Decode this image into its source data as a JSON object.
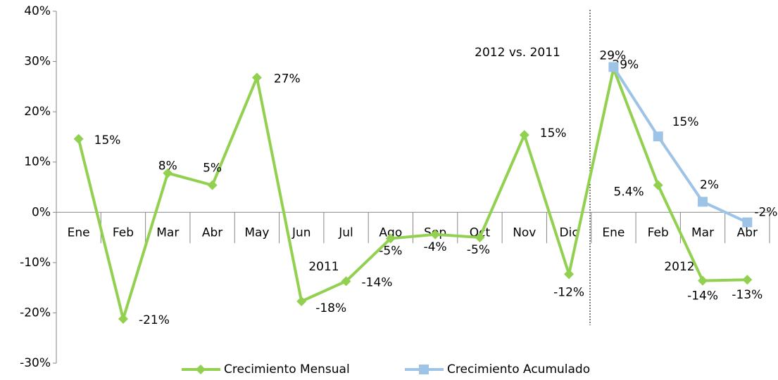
{
  "chart_data": {
    "type": "line",
    "annotations": [
      "2012 vs. 2011",
      "2011",
      "2012"
    ],
    "categories": [
      "Ene",
      "Feb",
      "Mar",
      "Abr",
      "May",
      "Jun",
      "Jul",
      "Ago",
      "Sep",
      "Oct",
      "Nov",
      "Dic",
      "Ene",
      "Feb",
      "Mar",
      "Abr"
    ],
    "series": [
      {
        "name": "Crecimiento Mensual",
        "color": "#92d050",
        "values": [
          14.6,
          -21.2,
          7.8,
          5.4,
          26.8,
          -17.7,
          -13.7,
          -5.2,
          -4.4,
          -5.0,
          15.4,
          -12.3,
          28.6,
          5.4,
          -13.6,
          -13.4
        ],
        "value_labels": [
          "15%",
          "-21%",
          "8%",
          "5%",
          "27%",
          "-18%",
          "-14%",
          "-5%",
          "-4%",
          "-5%",
          "15%",
          "-12%",
          "29%",
          "5.4%",
          "-14%",
          "-13%"
        ]
      },
      {
        "name": "Crecimiento Acumulado",
        "color": "#9dc3e6",
        "values": [
          null,
          null,
          null,
          null,
          null,
          null,
          null,
          null,
          null,
          null,
          null,
          null,
          28.9,
          15.1,
          2.1,
          -2.0
        ],
        "value_labels": [
          null,
          null,
          null,
          null,
          null,
          null,
          null,
          null,
          null,
          null,
          null,
          null,
          "29%",
          "15%",
          "2%",
          "-2%"
        ]
      }
    ],
    "ylim": [
      -30,
      40
    ],
    "yticks": [
      {
        "value": -30,
        "label": "-30%"
      },
      {
        "value": -20,
        "label": "-20%"
      },
      {
        "value": -10,
        "label": "-10%"
      },
      {
        "value": 0,
        "label": "0%"
      },
      {
        "value": 10,
        "label": "10%"
      },
      {
        "value": 20,
        "label": "20%"
      },
      {
        "value": 30,
        "label": "30%"
      },
      {
        "value": 40,
        "label": "40%"
      }
    ],
    "legend": "bottom"
  }
}
